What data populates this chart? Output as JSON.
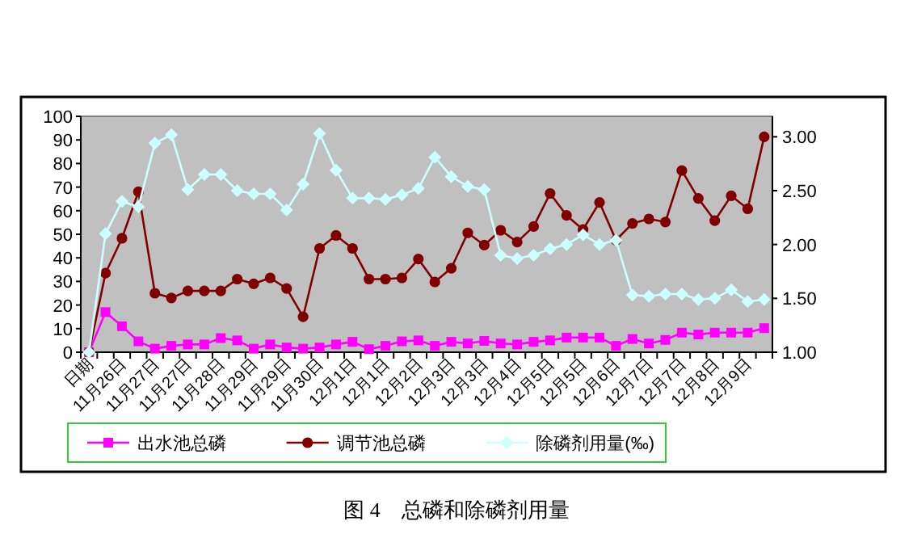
{
  "chart_data": {
    "type": "line",
    "title": "图 4　总磷和除磷剂用量",
    "categories": [
      "日期",
      null,
      "11月26日",
      null,
      "11月27日",
      null,
      "11月27日",
      null,
      "11月28日",
      null,
      "11月29日",
      null,
      "11月29日",
      null,
      "11月30日",
      null,
      "12月1日",
      null,
      "12月1日",
      null,
      "12月2日",
      null,
      "12月3日",
      null,
      "12月3日",
      null,
      "12月4日",
      null,
      "12月5日",
      null,
      "12月5日",
      null,
      "12月6日",
      null,
      "12月7日",
      null,
      "12月7日",
      null,
      "12月8日",
      null,
      "12月9日",
      null
    ],
    "series": [
      {
        "name": "出水池总磷",
        "color": "#ff00ff",
        "marker": "square",
        "values": [
          0,
          17,
          11,
          4.6,
          1.5,
          2.7,
          3.3,
          3.3,
          6,
          5,
          1.5,
          3.3,
          2,
          1.5,
          2,
          3.3,
          4.4,
          1.3,
          2.7,
          4.6,
          5,
          2.7,
          4.4,
          3.7,
          4.8,
          3.7,
          3.3,
          4.4,
          5,
          6.2,
          6.2,
          6.2,
          2.7,
          5.6,
          3.7,
          5.2,
          8.3,
          7.5,
          8.3,
          8.3,
          8.3,
          10.2
        ]
      },
      {
        "name": "调节池总磷",
        "color": "#800000",
        "marker": "circle",
        "values": [
          0,
          33.5,
          48.3,
          68,
          25,
          23,
          26,
          26,
          26,
          31,
          29,
          31.5,
          27,
          15,
          44,
          49.5,
          44,
          31,
          31,
          31.5,
          39.5,
          29.8,
          35.6,
          50.6,
          45.4,
          51.7,
          46.7,
          53.3,
          67.3,
          58,
          52,
          63.5,
          47.5,
          54.6,
          56.5,
          55.2,
          77,
          65.2,
          55.8,
          66.3,
          60.8,
          91.3
        ]
      },
      {
        "name": "除磷剂用量(‰)",
        "color": "#ccffff",
        "marker": "diamond",
        "axis": "y2",
        "values": [
          1.0,
          2.1,
          2.4,
          2.35,
          2.94,
          3.02,
          2.51,
          2.65,
          2.65,
          2.5,
          2.47,
          2.47,
          2.32,
          2.56,
          3.03,
          2.69,
          2.43,
          2.43,
          2.42,
          2.46,
          2.52,
          2.81,
          2.63,
          2.54,
          2.51,
          1.9,
          1.87,
          1.9,
          1.96,
          2.0,
          2.09,
          2.0,
          2.04,
          1.53,
          1.52,
          1.54,
          1.54,
          1.49,
          1.5,
          1.58,
          1.47,
          1.49
        ]
      }
    ],
    "ylim": [
      0,
      100
    ],
    "yticks": [
      0,
      10,
      20,
      30,
      40,
      50,
      60,
      70,
      80,
      90,
      100
    ],
    "y2lim": [
      1,
      3.19
    ],
    "y2ticks": [
      {
        "value": 1,
        "label": "1.00"
      },
      {
        "value": 1.5,
        "label": "1.50"
      },
      {
        "value": 2,
        "label": "2.00"
      },
      {
        "value": 2.5,
        "label": "2.50"
      },
      {
        "value": 3,
        "label": "3.00"
      }
    ],
    "legend": "bottom"
  }
}
